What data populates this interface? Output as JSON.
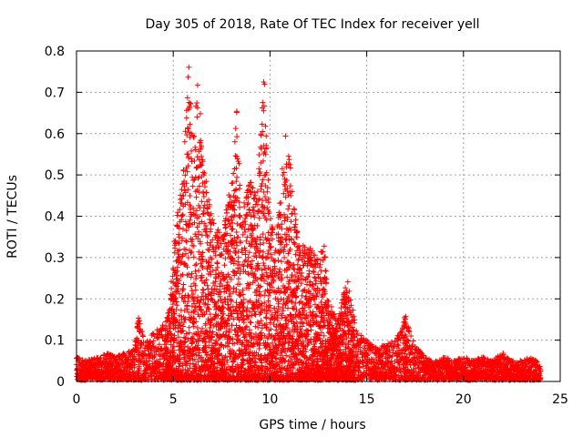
{
  "chart_data": {
    "type": "scatter",
    "title": "Day 305 of 2018, Rate Of TEC Index for receiver yell",
    "xlabel": "GPS time / hours",
    "ylabel": "ROTI / TECUs",
    "xlim": [
      0,
      25
    ],
    "ylim": [
      0,
      0.8
    ],
    "xticks": [
      "0",
      "5",
      "10",
      "15",
      "20",
      "25"
    ],
    "yticks": [
      "0",
      "0.1",
      "0.2",
      "0.3",
      "0.4",
      "0.5",
      "0.6",
      "0.7",
      "0.8"
    ],
    "grid": true,
    "marker": "plus",
    "color": "#ff0000",
    "series": [
      {
        "name": "ROTI",
        "envelope": {
          "x": [
            0,
            0.5,
            1,
            1.5,
            2,
            2.5,
            3,
            3.2,
            3.5,
            4,
            4.5,
            4.8,
            5,
            5.3,
            5.5,
            5.8,
            6,
            6.3,
            6.5,
            6.8,
            7,
            7.5,
            8,
            8.3,
            8.5,
            9,
            9.3,
            9.7,
            10,
            10.3,
            10.8,
            11,
            11.5,
            12,
            12.5,
            12.8,
            13,
            13.5,
            14,
            14.5,
            15,
            15.5,
            16,
            16.5,
            17,
            17.5,
            18,
            18.5,
            19,
            19.5,
            20,
            20.5,
            21,
            21.5,
            22,
            22.5,
            23,
            23.5,
            24
          ],
          "max": [
            0.06,
            0.05,
            0.06,
            0.07,
            0.06,
            0.07,
            0.08,
            0.16,
            0.1,
            0.12,
            0.14,
            0.18,
            0.32,
            0.45,
            0.5,
            0.77,
            0.6,
            0.75,
            0.55,
            0.45,
            0.4,
            0.35,
            0.5,
            0.67,
            0.4,
            0.5,
            0.45,
            0.75,
            0.4,
            0.35,
            0.6,
            0.55,
            0.33,
            0.33,
            0.3,
            0.35,
            0.2,
            0.15,
            0.25,
            0.12,
            0.1,
            0.08,
            0.09,
            0.1,
            0.16,
            0.09,
            0.06,
            0.05,
            0.06,
            0.05,
            0.06,
            0.05,
            0.06,
            0.05,
            0.07,
            0.05,
            0.05,
            0.06,
            0.04
          ]
        }
      }
    ]
  }
}
